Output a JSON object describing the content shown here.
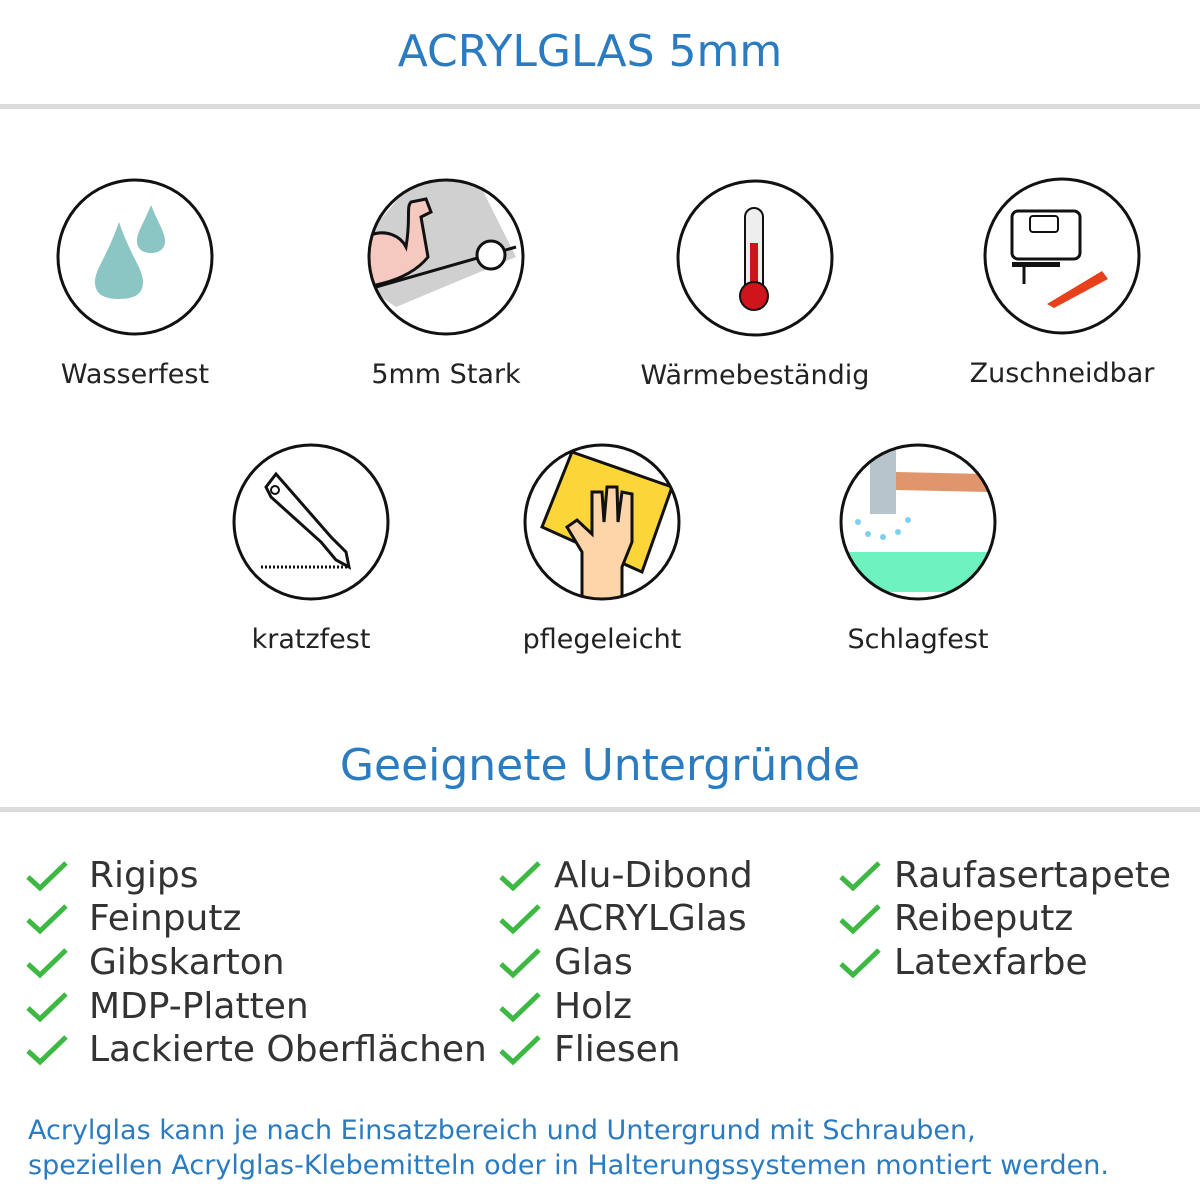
{
  "header": {
    "title": "ACRYLGLAS 5mm"
  },
  "features": [
    {
      "label": "Wasserfest",
      "icon": "water-drops-icon"
    },
    {
      "label": "5mm Stark",
      "icon": "strong-arm-icon"
    },
    {
      "label": "Wärmebeständig",
      "icon": "thermometer-icon"
    },
    {
      "label": "Zuschneidbar",
      "icon": "jigsaw-cutter-icon"
    },
    {
      "label": "kratzfest",
      "icon": "utility-knife-icon"
    },
    {
      "label": "pflegeleicht",
      "icon": "hand-sponge-icon"
    },
    {
      "label": "Schlagfest",
      "icon": "hammer-icon"
    }
  ],
  "surfaces": {
    "title": "Geeignete Untergründe",
    "columns": [
      [
        "Rigips",
        "Feinputz",
        "Gibskarton",
        "MDP-Platten",
        "Lackierte Oberflächen"
      ],
      [
        "Alu-Dibond",
        "ACRYLGlas",
        "Glas",
        "Holz",
        "Fliesen"
      ],
      [
        "Raufasertapete",
        "Reibeputz",
        "Latexfarbe"
      ]
    ],
    "check_color": "#3db843"
  },
  "footer": {
    "line1": "Acrylglas kann je nach Einsatzbereich und Untergrund mit Schrauben,",
    "line2": "speziellen Acrylglas-Klebemitteln oder in Halterungssystemen montiert werden."
  },
  "colors": {
    "accent": "#2b7bc0",
    "divider": "#dcdcdc"
  }
}
